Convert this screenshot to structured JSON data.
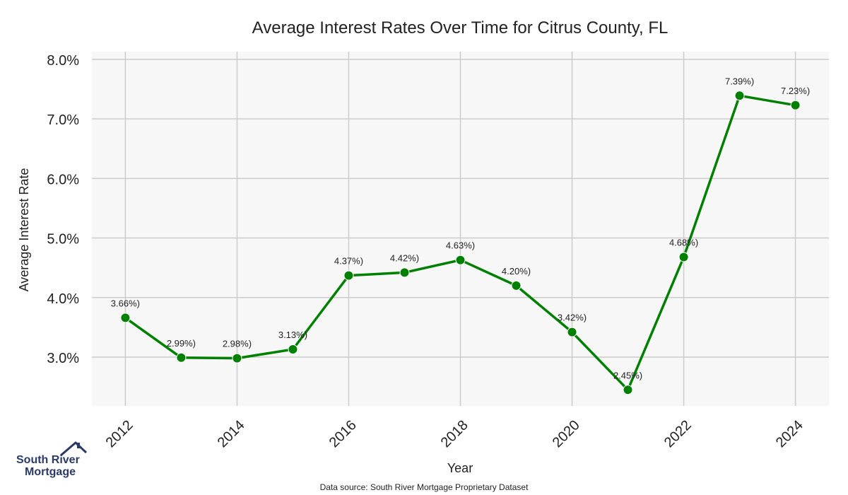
{
  "chart_data": {
    "type": "line",
    "title": "Average Interest Rates Over Time for Citrus County, FL",
    "xlabel": "Year",
    "ylabel": "Average Interest Rate",
    "x": [
      2012,
      2013,
      2014,
      2015,
      2016,
      2017,
      2018,
      2019,
      2020,
      2021,
      2022,
      2023,
      2024
    ],
    "values": [
      3.66,
      2.99,
      2.98,
      3.13,
      4.37,
      4.42,
      4.63,
      4.2,
      3.42,
      2.45,
      4.68,
      7.39,
      7.23
    ],
    "point_labels": [
      "3.66%)",
      "2.99%)",
      "2.98%)",
      "3.13%)",
      "4.37%)",
      "4.42%)",
      "4.63%)",
      "4.20%)",
      "3.42%)",
      "2.45%)",
      "4.68%)",
      "7.39%)",
      "7.23%)"
    ],
    "x_ticks": [
      "2012",
      "2014",
      "2016",
      "2018",
      "2020",
      "2022",
      "2024"
    ],
    "x_tick_values": [
      2012,
      2014,
      2016,
      2018,
      2020,
      2022,
      2024
    ],
    "y_ticks": [
      "3.0%",
      "4.0%",
      "5.0%",
      "6.0%",
      "7.0%",
      "8.0%"
    ],
    "y_tick_values": [
      3,
      4,
      5,
      6,
      7,
      8
    ],
    "xlim": [
      2011.4,
      2024.6
    ],
    "ylim": [
      2.18,
      8.13
    ],
    "grid": true,
    "line_color": "#008000",
    "plot_background": "#f7f7f7",
    "grid_color": "#cccccc"
  },
  "logo": {
    "line1": "South River",
    "line2": "Mortgage",
    "icon": "house-roof-icon",
    "color": "#2b3a67"
  },
  "source": "Data source: South River Mortgage Proprietary Dataset"
}
